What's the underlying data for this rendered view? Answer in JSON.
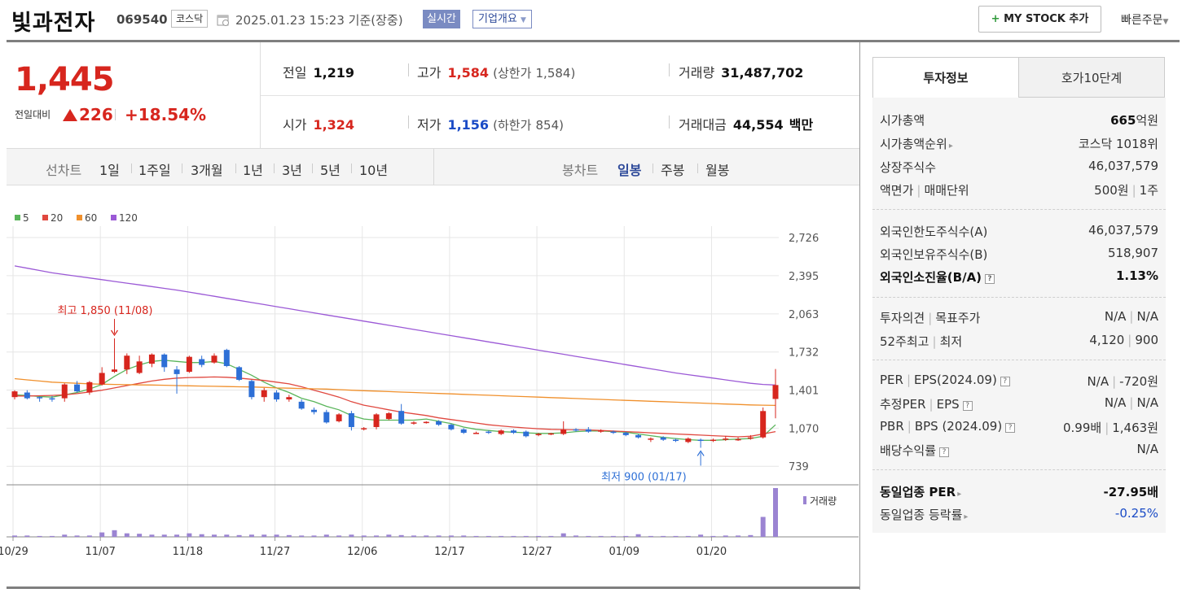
{
  "header": {
    "stock_name": "빛과전자",
    "code": "069540",
    "market": "코스닥",
    "timestamp": "2025.01.23 15:23",
    "basis": "기준(장중)",
    "realtime_label": "실시간",
    "corp_overview_label": "기업개요",
    "my_stock_label": "MY STOCK 추가",
    "quick_order_label": "빠른주문"
  },
  "price": {
    "current": "1,445",
    "compare_label": "전일대비",
    "change": "226",
    "change_rate": "+18.54%",
    "direction": "up"
  },
  "stats": {
    "prev_close_label": "전일",
    "prev_close": "1,219",
    "high_label": "고가",
    "high": "1,584",
    "upper_limit_label": "(상한가",
    "upper_limit": "1,584)",
    "volume_label": "거래량",
    "volume": "31,487,702",
    "open_label": "시가",
    "open": "1,324",
    "low_label": "저가",
    "low": "1,156",
    "lower_limit_label": "(하한가",
    "lower_limit": "854)",
    "trade_value_label": "거래대금",
    "trade_value": "44,554",
    "trade_value_unit": "백만"
  },
  "periods": {
    "line_chart_label": "선차트",
    "items": [
      "1일",
      "1주일",
      "3개월",
      "1년",
      "3년",
      "5년",
      "10년"
    ],
    "candle_chart_label": "봉차트",
    "candle_items": [
      "일봉",
      "주봉",
      "월봉"
    ],
    "selected_candle": "일봉"
  },
  "tabs": {
    "active": "투자정보",
    "inactive": "호가10단계"
  },
  "invest_info": {
    "market_cap_label": "시가총액",
    "market_cap_num": "665",
    "market_cap_unit": "억원",
    "market_cap_rank_label": "시가총액순위",
    "market_cap_rank": "코스닥 1018위",
    "shares_label": "상장주식수",
    "shares": "46,037,579",
    "face_value_label": "액면가",
    "trade_unit_label": "매매단위",
    "face_value": "500원",
    "trade_unit": "1주",
    "foreign_limit_label": "외국인한도주식수(A)",
    "foreign_limit": "46,037,579",
    "foreign_hold_label": "외국인보유주식수(B)",
    "foreign_hold": "518,907",
    "foreign_ratio_label": "외국인소진율(B/A)",
    "foreign_ratio": "1.13%",
    "opinion_label": "투자의견",
    "target_label": "목표주가",
    "opinion": "N/A",
    "target": "N/A",
    "week52_high_label": "52주최고",
    "week52_low_label": "최저",
    "week52_high": "4,120",
    "week52_low": "900",
    "per_label": "PER",
    "eps_label": "EPS(2024.09)",
    "per": "N/A",
    "eps": "-720원",
    "est_per_label": "추정PER",
    "est_eps_label": "EPS",
    "est_per": "N/A",
    "est_eps": "N/A",
    "pbr_label": "PBR",
    "bps_label": "BPS (2024.09)",
    "pbr": "0.99배",
    "bps": "1,463원",
    "dividend_label": "배당수익률",
    "dividend": "N/A",
    "industry_per_label": "동일업종 PER",
    "industry_per": "-27.95배",
    "industry_rate_label": "동일업종 등락률",
    "industry_rate": "-0.25%"
  },
  "chart_data": {
    "type": "candlestick",
    "legend": [
      {
        "name": "5",
        "color": "#59b55a"
      },
      {
        "name": "20",
        "color": "#e0483f"
      },
      {
        "name": "60",
        "color": "#f0902c"
      },
      {
        "name": "120",
        "color": "#9b59d6"
      }
    ],
    "y_ticks": [
      2726,
      2395,
      2063,
      1732,
      1401,
      1070,
      739
    ],
    "y_tick_labels": [
      "2,726",
      "2,395",
      "2,063",
      "1,732",
      "1,401",
      "1,070",
      "739"
    ],
    "ylim": [
      670,
      2790
    ],
    "x_tick_labels": [
      "10/29",
      "11/07",
      "11/18",
      "11/27",
      "12/06",
      "12/17",
      "12/27",
      "01/09",
      "01/20"
    ],
    "x_tick_index": [
      0,
      7,
      14,
      21,
      28,
      35,
      42,
      49,
      56
    ],
    "annotation_high": {
      "text": "최고 1,850 (11/08)",
      "index": 8,
      "value": 1850
    },
    "annotation_low": {
      "text": "최저 900 (01/17)",
      "index": 55,
      "value": 900
    },
    "volume_label": "거래량",
    "candles": [
      {
        "o": 1340,
        "h": 1400,
        "l": 1320,
        "c": 1390
      },
      {
        "o": 1380,
        "h": 1400,
        "l": 1320,
        "c": 1330
      },
      {
        "o": 1340,
        "h": 1345,
        "l": 1300,
        "c": 1335
      },
      {
        "o": 1330,
        "h": 1350,
        "l": 1300,
        "c": 1320
      },
      {
        "o": 1330,
        "h": 1460,
        "l": 1300,
        "c": 1450
      },
      {
        "o": 1450,
        "h": 1480,
        "l": 1380,
        "c": 1390
      },
      {
        "o": 1380,
        "h": 1480,
        "l": 1360,
        "c": 1470
      },
      {
        "o": 1450,
        "h": 1600,
        "l": 1440,
        "c": 1550
      },
      {
        "o": 1560,
        "h": 1850,
        "l": 1550,
        "c": 1580
      },
      {
        "o": 1580,
        "h": 1720,
        "l": 1540,
        "c": 1700
      },
      {
        "o": 1550,
        "h": 1700,
        "l": 1540,
        "c": 1650
      },
      {
        "o": 1630,
        "h": 1720,
        "l": 1600,
        "c": 1710
      },
      {
        "o": 1710,
        "h": 1720,
        "l": 1560,
        "c": 1600
      },
      {
        "o": 1580,
        "h": 1610,
        "l": 1370,
        "c": 1540
      },
      {
        "o": 1560,
        "h": 1700,
        "l": 1550,
        "c": 1690
      },
      {
        "o": 1670,
        "h": 1700,
        "l": 1600,
        "c": 1620
      },
      {
        "o": 1640,
        "h": 1720,
        "l": 1630,
        "c": 1700
      },
      {
        "o": 1750,
        "h": 1760,
        "l": 1600,
        "c": 1610
      },
      {
        "o": 1600,
        "h": 1610,
        "l": 1480,
        "c": 1490
      },
      {
        "o": 1480,
        "h": 1490,
        "l": 1320,
        "c": 1340
      },
      {
        "o": 1340,
        "h": 1420,
        "l": 1300,
        "c": 1400
      },
      {
        "o": 1380,
        "h": 1400,
        "l": 1300,
        "c": 1320
      },
      {
        "o": 1320,
        "h": 1360,
        "l": 1300,
        "c": 1340
      },
      {
        "o": 1300,
        "h": 1320,
        "l": 1230,
        "c": 1240
      },
      {
        "o": 1230,
        "h": 1250,
        "l": 1190,
        "c": 1210
      },
      {
        "o": 1210,
        "h": 1230,
        "l": 1110,
        "c": 1120
      },
      {
        "o": 1130,
        "h": 1200,
        "l": 1120,
        "c": 1190
      },
      {
        "o": 1200,
        "h": 1220,
        "l": 1050,
        "c": 1080
      },
      {
        "o": 1060,
        "h": 1080,
        "l": 1050,
        "c": 1070
      },
      {
        "o": 1080,
        "h": 1200,
        "l": 1060,
        "c": 1190
      },
      {
        "o": 1150,
        "h": 1210,
        "l": 1140,
        "c": 1200
      },
      {
        "o": 1220,
        "h": 1280,
        "l": 1100,
        "c": 1110
      },
      {
        "o": 1110,
        "h": 1130,
        "l": 1100,
        "c": 1120
      },
      {
        "o": 1120,
        "h": 1130,
        "l": 1110,
        "c": 1125
      },
      {
        "o": 1130,
        "h": 1140,
        "l": 1090,
        "c": 1100
      },
      {
        "o": 1100,
        "h": 1110,
        "l": 1050,
        "c": 1060
      },
      {
        "o": 1060,
        "h": 1070,
        "l": 1020,
        "c": 1030
      },
      {
        "o": 1030,
        "h": 1040,
        "l": 1020,
        "c": 1030
      },
      {
        "o": 1040,
        "h": 1050,
        "l": 1020,
        "c": 1030
      },
      {
        "o": 1020,
        "h": 1060,
        "l": 1010,
        "c": 1050
      },
      {
        "o": 1050,
        "h": 1060,
        "l": 1020,
        "c": 1030
      },
      {
        "o": 1040,
        "h": 1050,
        "l": 990,
        "c": 1000
      },
      {
        "o": 1010,
        "h": 1030,
        "l": 1000,
        "c": 1020
      },
      {
        "o": 1020,
        "h": 1030,
        "l": 1010,
        "c": 1025
      },
      {
        "o": 1020,
        "h": 1130,
        "l": 1010,
        "c": 1060
      },
      {
        "o": 1060,
        "h": 1070,
        "l": 1040,
        "c": 1050
      },
      {
        "o": 1060,
        "h": 1080,
        "l": 1030,
        "c": 1040
      },
      {
        "o": 1040,
        "h": 1060,
        "l": 1030,
        "c": 1050
      },
      {
        "o": 1040,
        "h": 1050,
        "l": 1020,
        "c": 1030
      },
      {
        "o": 1030,
        "h": 1040,
        "l": 1000,
        "c": 1010
      },
      {
        "o": 1010,
        "h": 1020,
        "l": 980,
        "c": 990
      },
      {
        "o": 970,
        "h": 990,
        "l": 950,
        "c": 980
      },
      {
        "o": 990,
        "h": 1000,
        "l": 960,
        "c": 970
      },
      {
        "o": 970,
        "h": 980,
        "l": 950,
        "c": 960
      },
      {
        "o": 950,
        "h": 990,
        "l": 940,
        "c": 980
      },
      {
        "o": 970,
        "h": 980,
        "l": 900,
        "c": 960
      },
      {
        "o": 960,
        "h": 980,
        "l": 950,
        "c": 970
      },
      {
        "o": 970,
        "h": 1000,
        "l": 960,
        "c": 980
      },
      {
        "o": 970,
        "h": 990,
        "l": 960,
        "c": 975
      },
      {
        "o": 980,
        "h": 1010,
        "l": 970,
        "c": 990
      },
      {
        "o": 990,
        "h": 1250,
        "l": 980,
        "c": 1219
      },
      {
        "o": 1324,
        "h": 1584,
        "l": 1156,
        "c": 1445
      }
    ],
    "ma": {
      "5": [
        1360,
        1355,
        1345,
        1340,
        1360,
        1380,
        1410,
        1450,
        1520,
        1580,
        1620,
        1650,
        1660,
        1650,
        1640,
        1640,
        1650,
        1630,
        1580,
        1530,
        1470,
        1420,
        1380,
        1330,
        1300,
        1260,
        1230,
        1180,
        1150,
        1140,
        1140,
        1140,
        1140,
        1150,
        1130,
        1110,
        1080,
        1060,
        1050,
        1040,
        1035,
        1030,
        1025,
        1025,
        1030,
        1040,
        1045,
        1045,
        1040,
        1035,
        1020,
        1005,
        990,
        980,
        970,
        965,
        965,
        970,
        975,
        980,
        1000,
        1100
      ],
      "20": [
        1350,
        1350,
        1352,
        1355,
        1360,
        1370,
        1385,
        1400,
        1420,
        1440,
        1460,
        1480,
        1495,
        1505,
        1510,
        1512,
        1515,
        1512,
        1505,
        1495,
        1485,
        1470,
        1455,
        1430,
        1400,
        1370,
        1340,
        1300,
        1270,
        1250,
        1230,
        1210,
        1195,
        1180,
        1160,
        1145,
        1130,
        1115,
        1100,
        1090,
        1080,
        1072,
        1065,
        1060,
        1058,
        1056,
        1055,
        1050,
        1045,
        1040,
        1035,
        1030,
        1025,
        1020,
        1015,
        1010,
        1005,
        1000,
        995,
        1000,
        1020,
        1040
      ],
      "60": [
        1500,
        1490,
        1480,
        1470,
        1465,
        1460,
        1455,
        1452,
        1450,
        1448,
        1446,
        1445,
        1443,
        1440,
        1438,
        1436,
        1434,
        1432,
        1430,
        1428,
        1425,
        1420,
        1418,
        1415,
        1412,
        1410,
        1405,
        1400,
        1396,
        1392,
        1388,
        1384,
        1380,
        1376,
        1372,
        1368,
        1364,
        1360,
        1356,
        1352,
        1348,
        1344,
        1340,
        1336,
        1332,
        1328,
        1324,
        1320,
        1316,
        1312,
        1308,
        1304,
        1300,
        1296,
        1292,
        1288,
        1284,
        1280,
        1276,
        1272,
        1270,
        1268
      ],
      "120": [
        2480,
        2460,
        2440,
        2420,
        2405,
        2390,
        2375,
        2360,
        2345,
        2330,
        2315,
        2300,
        2285,
        2270,
        2252,
        2234,
        2216,
        2198,
        2180,
        2162,
        2144,
        2126,
        2108,
        2090,
        2072,
        2054,
        2036,
        2018,
        2000,
        1982,
        1964,
        1946,
        1928,
        1910,
        1892,
        1874,
        1856,
        1838,
        1820,
        1802,
        1784,
        1766,
        1748,
        1730,
        1712,
        1694,
        1676,
        1658,
        1640,
        1622,
        1604,
        1586,
        1568,
        1550,
        1535,
        1520,
        1505,
        1490,
        1475,
        1460,
        1450,
        1445
      ]
    },
    "volume": [
      0.3,
      0.3,
      0.2,
      0.2,
      0.5,
      0.3,
      0.3,
      1.0,
      1.5,
      0.8,
      0.7,
      0.5,
      0.5,
      0.5,
      0.8,
      0.6,
      0.5,
      0.5,
      0.4,
      0.5,
      0.5,
      0.5,
      0.4,
      0.3,
      0.3,
      0.5,
      0.3,
      0.5,
      0.3,
      0.3,
      0.5,
      0.4,
      0.3,
      0.3,
      0.3,
      0.3,
      0.3,
      0.2,
      0.2,
      0.2,
      0.2,
      0.2,
      0.2,
      0.2,
      0.8,
      0.3,
      0.2,
      0.2,
      0.2,
      0.2,
      0.6,
      0.2,
      0.2,
      0.2,
      0.2,
      0.5,
      0.2,
      0.3,
      0.3,
      0.4,
      4.5,
      11.0
    ]
  }
}
